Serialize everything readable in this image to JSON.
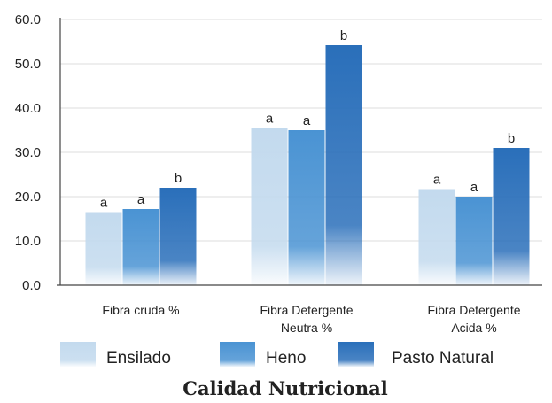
{
  "chart_data": {
    "type": "bar",
    "title": "Calidad Nutricional",
    "categories": [
      [
        "Fibra cruda %"
      ],
      [
        "Fibra Detergente",
        "Neutra %"
      ],
      [
        "Fibra Detergente",
        "Acida %"
      ]
    ],
    "series": [
      {
        "name": "Ensilado",
        "values": [
          16.5,
          35.5,
          21.7
        ],
        "labels": [
          "a",
          "a",
          "a"
        ],
        "color": "#c3daee"
      },
      {
        "name": "Heno",
        "values": [
          17.2,
          35.0,
          20.0
        ],
        "labels": [
          "a",
          "a",
          "a"
        ],
        "color": "#4a93d3"
      },
      {
        "name": "Pasto Natural",
        "values": [
          22.0,
          54.2,
          31.0
        ],
        "labels": [
          "b",
          "b",
          "b"
        ],
        "color": "#2a6fba"
      }
    ],
    "yticks": [
      "0.0",
      "10.0",
      "20.0",
      "30.0",
      "40.0",
      "50.0",
      "60.0"
    ],
    "ylim": [
      0,
      60
    ],
    "grid": true,
    "legend_position": "bottom"
  }
}
